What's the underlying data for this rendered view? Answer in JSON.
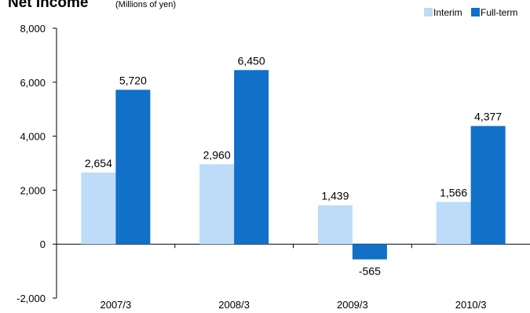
{
  "chart_data": {
    "type": "bar",
    "title": "Net Income",
    "subtitle": "(Millions of yen)",
    "categories": [
      "2007/3",
      "2008/3",
      "2009/3",
      "2010/3"
    ],
    "series": [
      {
        "name": "Interim",
        "values": [
          2654,
          2960,
          1439,
          1566
        ],
        "color": "#bcdcf7"
      },
      {
        "name": "Full-term",
        "values": [
          5720,
          6450,
          -565,
          4377
        ],
        "color": "#1170c8"
      }
    ],
    "data_labels": {
      "Interim": [
        "2,654",
        "2,960",
        "1,439",
        "1,566"
      ],
      "Full-term": [
        "5,720",
        "6,450",
        "-565",
        "4,377"
      ]
    },
    "ylim": [
      -2000,
      8000
    ],
    "yticks": [
      -2000,
      0,
      2000,
      4000,
      6000,
      8000
    ],
    "ytick_labels": [
      "-2,000",
      "0",
      "2,000",
      "4,000",
      "6,000",
      "8,000"
    ],
    "xlabel": "",
    "ylabel": "",
    "grid": false,
    "legend": "top-right"
  }
}
